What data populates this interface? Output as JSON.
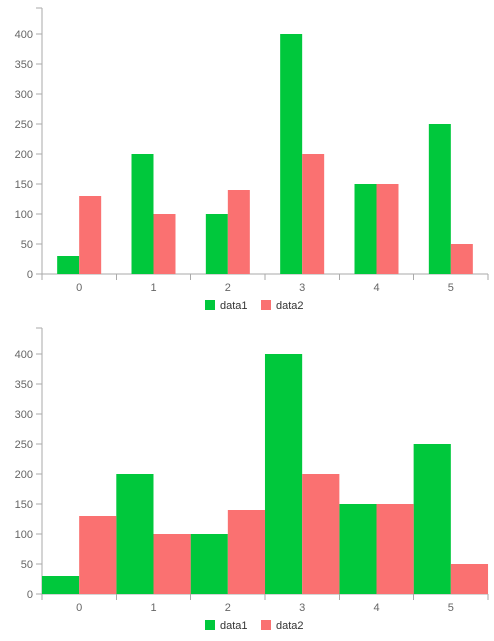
{
  "chart_data": [
    {
      "type": "bar",
      "categories": [
        "0",
        "1",
        "2",
        "3",
        "4",
        "5"
      ],
      "series": [
        {
          "name": "data1",
          "color": "#00c83c",
          "values": [
            30,
            200,
            100,
            400,
            150,
            250
          ]
        },
        {
          "name": "data2",
          "color": "#fa7171",
          "values": [
            130,
            100,
            140,
            200,
            150,
            50
          ]
        }
      ],
      "ylim": [
        0,
        400
      ],
      "yticks": [
        0,
        50,
        100,
        150,
        200,
        250,
        300,
        350,
        400
      ],
      "grid": false,
      "legend": "bottom-center",
      "bar_width_ratio": "narrow"
    },
    {
      "type": "bar",
      "categories": [
        "0",
        "1",
        "2",
        "3",
        "4",
        "5"
      ],
      "series": [
        {
          "name": "data1",
          "color": "#00c83c",
          "values": [
            30,
            200,
            100,
            400,
            150,
            250
          ]
        },
        {
          "name": "data2",
          "color": "#fa7171",
          "values": [
            130,
            100,
            140,
            200,
            150,
            50
          ]
        }
      ],
      "ylim": [
        0,
        400
      ],
      "yticks": [
        0,
        50,
        100,
        150,
        200,
        250,
        300,
        350,
        400
      ],
      "grid": false,
      "legend": "bottom-center",
      "bar_width_ratio": "full"
    }
  ]
}
